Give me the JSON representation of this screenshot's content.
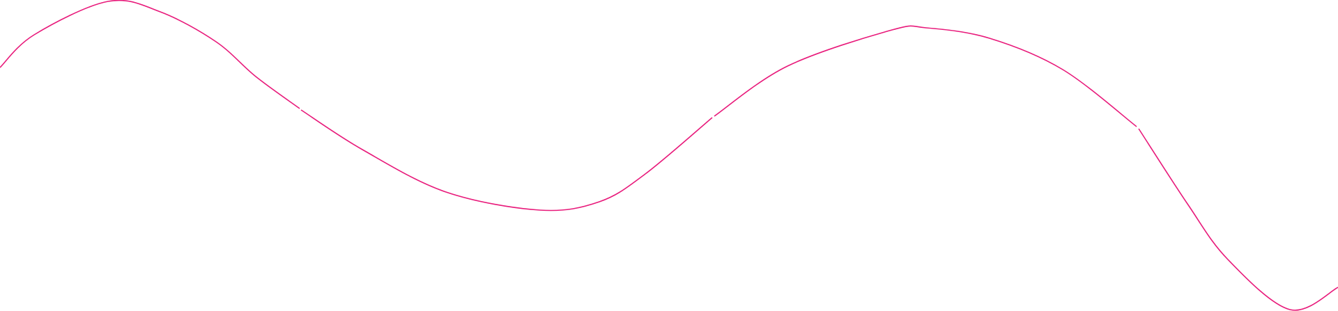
{
  "decoration": {
    "line_color": "#e8197a",
    "background": "#ffffff"
  }
}
